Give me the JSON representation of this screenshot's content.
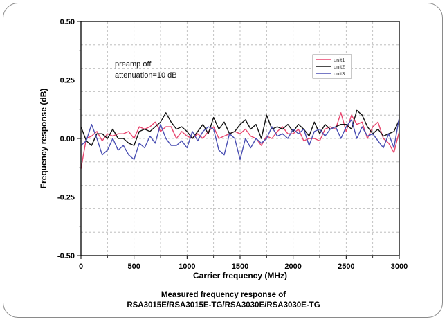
{
  "chart_data": {
    "type": "line",
    "xlabel": "Carrier frequency (MHz)",
    "ylabel": "Frequency response (dB)",
    "xlim": [
      0,
      3000
    ],
    "ylim": [
      -0.5,
      0.5
    ],
    "xticks": [
      0,
      500,
      1000,
      1500,
      2000,
      2500,
      3000
    ],
    "yticks": [
      -0.5,
      -0.25,
      0.0,
      0.25,
      0.5
    ],
    "ytick_labels": [
      "-0.50",
      "-0.25",
      "0.00",
      "0.25",
      "0.50"
    ],
    "grid": "dashed",
    "legend_position": "top-right",
    "annotations": [
      "preamp off",
      "attenuation=10 dB"
    ],
    "caption": [
      "Measured frequency response of",
      "RSA3015E/RSA3015E-TG/RSA3030E/RSA3030E-TG"
    ],
    "series": [
      {
        "name": "unit1",
        "color": "#e8456e",
        "x": [
          0,
          50,
          100,
          150,
          200,
          250,
          300,
          350,
          400,
          450,
          500,
          550,
          600,
          650,
          700,
          750,
          800,
          850,
          900,
          950,
          1000,
          1050,
          1100,
          1150,
          1200,
          1250,
          1300,
          1350,
          1400,
          1450,
          1500,
          1550,
          1600,
          1650,
          1700,
          1750,
          1800,
          1850,
          1900,
          1950,
          2000,
          2050,
          2100,
          2150,
          2200,
          2250,
          2300,
          2350,
          2400,
          2450,
          2500,
          2550,
          2600,
          2650,
          2700,
          2750,
          2800,
          2850,
          2900,
          2950,
          3000
        ],
        "values": [
          -0.13,
          0.0,
          0.01,
          0.03,
          -0.01,
          0.02,
          0.01,
          0.02,
          0.02,
          0.03,
          0.0,
          0.05,
          0.04,
          0.05,
          0.07,
          0.03,
          0.05,
          0.05,
          0.0,
          0.03,
          0.01,
          0.0,
          0.02,
          0.0,
          0.03,
          0.05,
          0.0,
          0.01,
          0.02,
          0.03,
          0.02,
          0.04,
          0.01,
          0.0,
          -0.03,
          0.01,
          0.0,
          0.03,
          0.05,
          0.02,
          0.02,
          0.04,
          -0.01,
          0.0,
          0.0,
          -0.01,
          0.04,
          0.05,
          0.04,
          0.11,
          0.03,
          0.1,
          0.06,
          0.07,
          0.0,
          0.05,
          0.07,
          0.0,
          -0.02,
          -0.06,
          0.03
        ]
      },
      {
        "name": "unit2",
        "color": "#111111",
        "x": [
          0,
          50,
          100,
          150,
          200,
          250,
          300,
          350,
          400,
          450,
          500,
          550,
          600,
          650,
          700,
          750,
          800,
          850,
          900,
          950,
          1000,
          1050,
          1100,
          1150,
          1200,
          1250,
          1300,
          1350,
          1400,
          1450,
          1500,
          1550,
          1600,
          1650,
          1700,
          1750,
          1800,
          1850,
          1900,
          1950,
          2000,
          2050,
          2100,
          2150,
          2200,
          2250,
          2300,
          2350,
          2400,
          2450,
          2500,
          2550,
          2600,
          2650,
          2700,
          2750,
          2800,
          2850,
          2900,
          2950,
          3000
        ],
        "values": [
          0.05,
          -0.01,
          -0.03,
          0.02,
          0.02,
          0.0,
          0.04,
          0.0,
          0.0,
          -0.02,
          -0.03,
          0.03,
          0.04,
          0.03,
          0.05,
          0.07,
          0.11,
          0.07,
          0.04,
          0.05,
          0.03,
          0.0,
          0.03,
          0.06,
          0.02,
          0.09,
          0.04,
          0.07,
          0.02,
          0.03,
          0.06,
          0.08,
          0.04,
          0.06,
          0.0,
          0.1,
          0.04,
          0.05,
          0.04,
          0.06,
          0.03,
          0.06,
          0.04,
          0.01,
          0.07,
          0.02,
          0.06,
          0.04,
          0.05,
          0.06,
          0.06,
          0.04,
          0.12,
          0.1,
          0.05,
          0.02,
          0.04,
          0.01,
          0.02,
          0.03,
          0.08
        ]
      },
      {
        "name": "unit3",
        "color": "#4a4fb3",
        "x": [
          0,
          50,
          100,
          150,
          200,
          250,
          300,
          350,
          400,
          450,
          500,
          550,
          600,
          650,
          700,
          750,
          800,
          850,
          900,
          950,
          1000,
          1050,
          1100,
          1150,
          1200,
          1250,
          1300,
          1350,
          1400,
          1450,
          1500,
          1550,
          1600,
          1650,
          1700,
          1750,
          1800,
          1850,
          1900,
          1950,
          2000,
          2050,
          2100,
          2150,
          2200,
          2250,
          2300,
          2350,
          2400,
          2450,
          2500,
          2550,
          2600,
          2650,
          2700,
          2750,
          2800,
          2850,
          2900,
          2950,
          3000
        ],
        "values": [
          -0.03,
          -0.01,
          0.06,
          0.0,
          -0.07,
          -0.05,
          0.0,
          -0.05,
          -0.03,
          -0.07,
          -0.09,
          -0.02,
          -0.04,
          0.01,
          -0.02,
          0.06,
          0.0,
          -0.03,
          -0.03,
          -0.01,
          -0.04,
          0.03,
          -0.01,
          0.03,
          0.05,
          0.04,
          -0.05,
          -0.07,
          0.02,
          0.0,
          -0.09,
          0.0,
          -0.04,
          0.0,
          -0.02,
          0.0,
          0.05,
          0.01,
          0.02,
          0.0,
          0.04,
          0.02,
          0.04,
          -0.03,
          0.03,
          0.04,
          0.01,
          0.04,
          0.05,
          0.0,
          0.05,
          0.08,
          0.0,
          0.05,
          0.01,
          0.02,
          -0.01,
          -0.04,
          0.02,
          -0.04,
          0.09
        ]
      }
    ]
  }
}
